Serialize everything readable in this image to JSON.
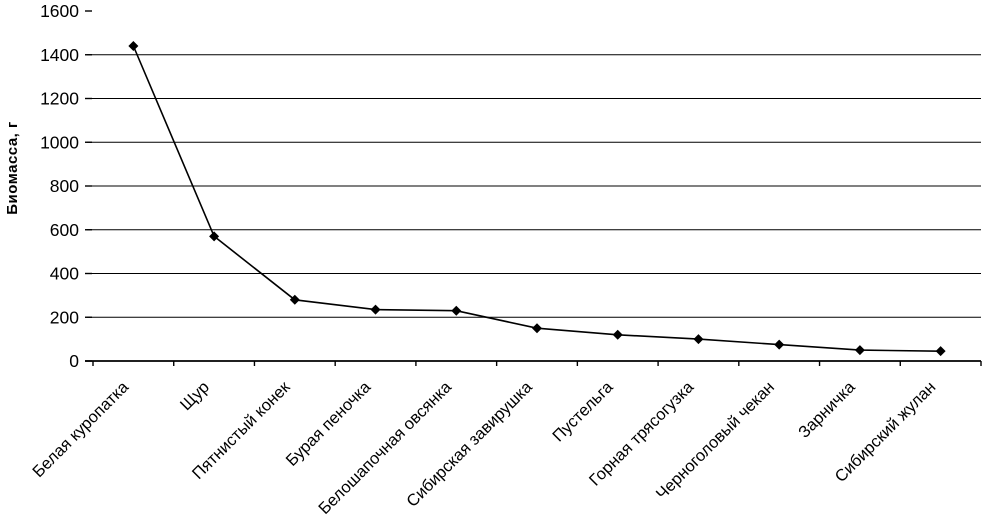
{
  "chart_data": {
    "type": "line",
    "title": "",
    "xlabel": "",
    "ylabel": "Биомасса, г",
    "categories": [
      "Белая куропатка",
      "Щур",
      "Пятнистый конек",
      "Бурая пеночка",
      "Белошапочная овсянка",
      "Сибирская завирушка",
      "Пустельга",
      "Горная трясогузка",
      "Черноголовый чекан",
      "Зарничка",
      "Сибирский жулан"
    ],
    "values": [
      1440,
      570,
      280,
      235,
      230,
      150,
      120,
      100,
      75,
      50,
      45
    ],
    "ylim": [
      0,
      1600
    ],
    "yticks": [
      0,
      200,
      400,
      600,
      800,
      1000,
      1200,
      1400,
      1600
    ],
    "grid": true,
    "gridline_ticks": [
      200,
      400,
      600,
      800,
      1000,
      1200,
      1400
    ],
    "legend": "none",
    "marker": "diamond",
    "line_color": "#000000",
    "marker_color": "#000000",
    "grid_color": "#000000",
    "background_color": "#ffffff",
    "x_label_rotation_deg": 45
  }
}
